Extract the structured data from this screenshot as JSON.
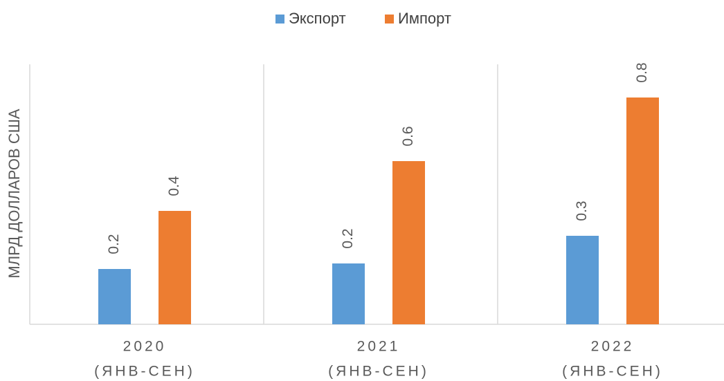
{
  "chart_data": {
    "type": "bar",
    "y_label": "МЛРД ДОЛЛАРОВ США",
    "categories": [
      [
        "2020",
        "(ЯНВ-СЕН)"
      ],
      [
        "2021",
        "(ЯНВ-СЕН)"
      ],
      [
        "2022",
        "(ЯНВ-СЕН)"
      ]
    ],
    "series": [
      {
        "name": "Экспорт",
        "color": "#5b9bd5",
        "values": [
          0.2,
          0.22,
          0.32
        ],
        "value_labels": [
          "0.2",
          "0.2",
          "0.3"
        ]
      },
      {
        "name": "Импорт",
        "color": "#ed7d31",
        "values": [
          0.41,
          0.59,
          0.82
        ],
        "value_labels": [
          "0.4",
          "0.6",
          "0.8"
        ]
      }
    ],
    "ylim": [
      0,
      0.94
    ],
    "legend": "top",
    "grid": false
  }
}
